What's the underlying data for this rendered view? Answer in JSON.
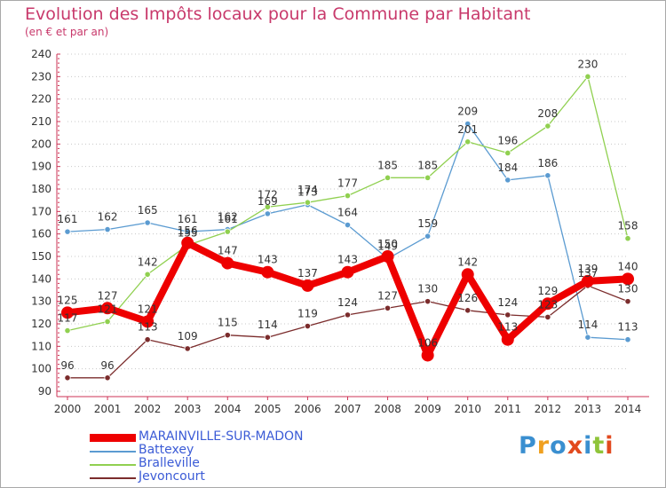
{
  "header": {
    "title": "Evolution des Impôts locaux pour la Commune par Habitant",
    "subtitle": "(en € et par an)"
  },
  "logo": {
    "text": "Proxiti",
    "letters": [
      "P",
      "r",
      "o",
      "x",
      "i",
      "t",
      "i"
    ],
    "colors": [
      "#3a8fd0",
      "#f0a020",
      "#3a8fd0",
      "#e24a1e",
      "#3a8fd0",
      "#8fc43a",
      "#e24a1e"
    ]
  },
  "chart_data": {
    "type": "line",
    "title": "Evolution des Impôts locaux pour la Commune par Habitant",
    "subtitle": "(en € et par an)",
    "xlabel": "",
    "ylabel": "",
    "x": [
      2000,
      2001,
      2002,
      2003,
      2004,
      2005,
      2006,
      2007,
      2008,
      2009,
      2010,
      2011,
      2012,
      2013,
      2014
    ],
    "ylim": [
      90,
      240
    ],
    "yticks": [
      90,
      100,
      110,
      120,
      130,
      140,
      150,
      160,
      170,
      180,
      190,
      200,
      210,
      220,
      230,
      240
    ],
    "grid": "horizontal dotted",
    "legend_position": "bottom-left",
    "series": [
      {
        "name": "Battexey",
        "color": "#5b9bd1",
        "values": [
          161,
          162,
          165,
          161,
          162,
          169,
          173,
          164,
          149,
          159,
          209,
          184,
          186,
          114,
          113
        ]
      },
      {
        "name": "Bralleville",
        "color": "#90d050",
        "values": [
          117,
          121,
          142,
          155,
          161,
          172,
          174,
          177,
          185,
          185,
          201,
          196,
          208,
          230,
          158
        ]
      },
      {
        "name": "Jevoncourt",
        "color": "#7b2c2c",
        "values": [
          96,
          96,
          113,
          109,
          115,
          114,
          119,
          124,
          127,
          130,
          126,
          124,
          123,
          137,
          130
        ]
      },
      {
        "name": "MARAINVILLE-SUR-MADON",
        "color": "#ee0000",
        "values": [
          125,
          127,
          121,
          156,
          147,
          143,
          137,
          143,
          150,
          106,
          142,
          113,
          129,
          139,
          140
        ]
      }
    ],
    "legend": [
      "MARAINVILLE-SUR-MADON",
      "Battexey",
      "Bralleville",
      "Jevoncourt"
    ]
  }
}
